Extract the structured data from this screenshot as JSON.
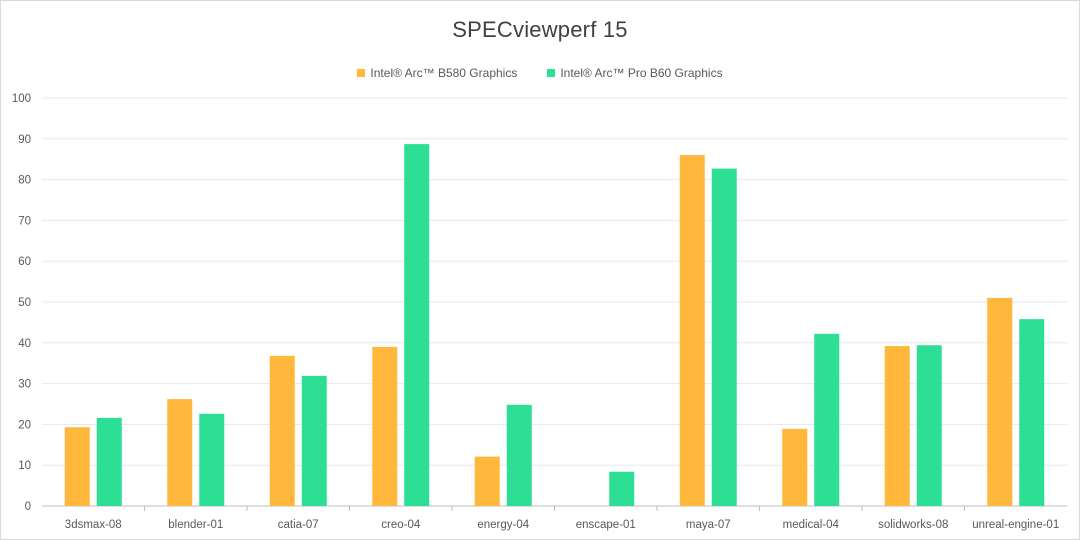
{
  "chart_data": {
    "type": "bar",
    "title": "SPECviewperf 15",
    "categories": [
      "3dsmax-08",
      "blender-01",
      "catia-07",
      "creo-04",
      "energy-04",
      "enscape-01",
      "maya-07",
      "medical-04",
      "solidworks-08",
      "unreal-engine-01"
    ],
    "series": [
      {
        "name": "Intel® Arc™ B580 Graphics",
        "color": "#ffb83b",
        "values": [
          19.3,
          26.2,
          36.8,
          39.0,
          12.1,
          null,
          86.0,
          18.9,
          39.2,
          51.0
        ]
      },
      {
        "name": "Intel® Arc™ Pro B60 Graphics",
        "color": "#2ddf95",
        "values": [
          21.6,
          22.6,
          31.9,
          88.7,
          24.8,
          8.4,
          82.7,
          42.2,
          39.4,
          45.8
        ]
      }
    ],
    "ylim": [
      0,
      100
    ],
    "yticks": [
      0,
      10,
      20,
      30,
      40,
      50,
      60,
      70,
      80,
      90,
      100
    ],
    "grid": true,
    "legend_position": "top-center",
    "xlabel": "",
    "ylabel": ""
  }
}
